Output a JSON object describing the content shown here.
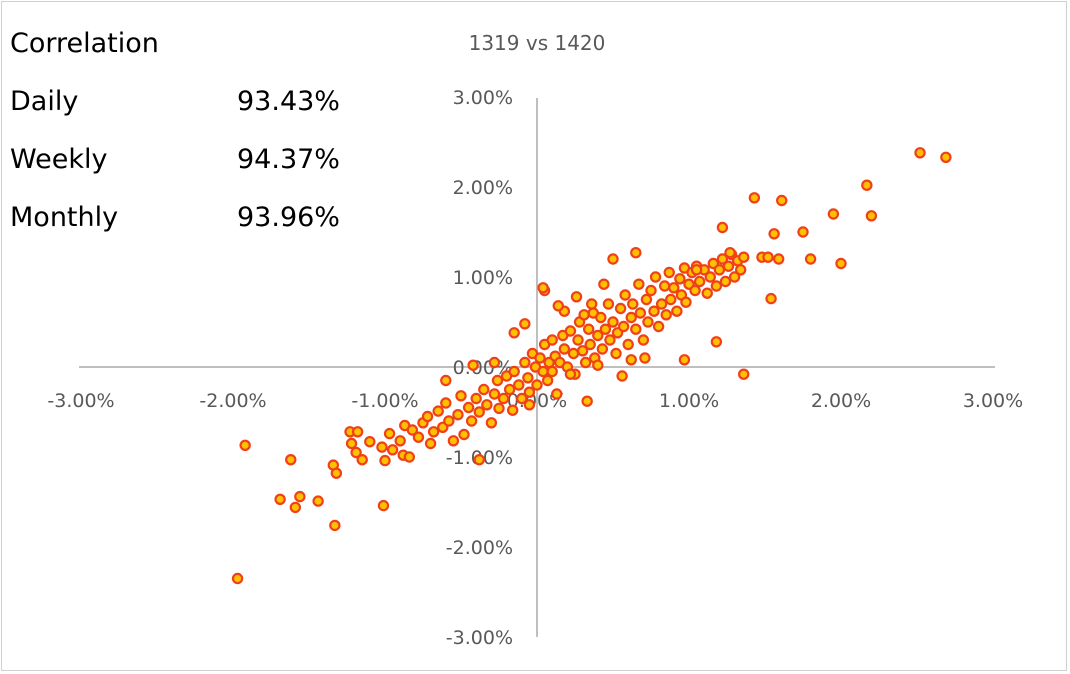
{
  "correlation": {
    "heading": "Correlation",
    "rows": [
      {
        "label": "Daily",
        "value": "93.43%"
      },
      {
        "label": "Weekly",
        "value": "94.37%"
      },
      {
        "label": "Monthly",
        "value": "93.96%"
      }
    ]
  },
  "chart_data": {
    "type": "scatter",
    "title": "1319 vs 1420",
    "xlabel": "",
    "ylabel": "",
    "xlim": [
      -3,
      3
    ],
    "ylim": [
      -3,
      3
    ],
    "x_tick_labels": [
      "-3.00%",
      "-2.00%",
      "-1.00%",
      "0.00%",
      "1.00%",
      "2.00%",
      "3.00%"
    ],
    "y_tick_labels": [
      "-3.00%",
      "-2.00%",
      "-1.00%",
      "0.00%",
      "1.00%",
      "2.00%",
      "3.00%"
    ],
    "grid": false,
    "marker_fill": "#ffc000",
    "marker_edge": "#f0401a",
    "series": [
      {
        "points": [
          [
            -1.97,
            -2.35
          ],
          [
            -1.92,
            -0.87
          ],
          [
            -1.69,
            -1.47
          ],
          [
            -1.62,
            -1.03
          ],
          [
            -1.59,
            -1.56
          ],
          [
            -1.56,
            -1.44
          ],
          [
            -1.44,
            -1.49
          ],
          [
            -1.33,
            -1.76
          ],
          [
            -1.34,
            -1.09
          ],
          [
            -1.32,
            -1.18
          ],
          [
            -1.23,
            -0.72
          ],
          [
            -1.22,
            -0.85
          ],
          [
            -1.18,
            -0.72
          ],
          [
            -1.19,
            -0.95
          ],
          [
            -1.15,
            -1.03
          ],
          [
            -1.1,
            -0.83
          ],
          [
            -1.02,
            -0.89
          ],
          [
            -1.0,
            -1.04
          ],
          [
            -1.01,
            -1.54
          ],
          [
            -0.97,
            -0.74
          ],
          [
            -0.95,
            -0.92
          ],
          [
            -0.9,
            -0.82
          ],
          [
            -0.88,
            -0.98
          ],
          [
            -0.87,
            -0.65
          ],
          [
            -0.84,
            -1.0
          ],
          [
            -0.82,
            -0.7
          ],
          [
            -0.78,
            -0.78
          ],
          [
            -0.75,
            -0.62
          ],
          [
            -0.72,
            -0.55
          ],
          [
            -0.7,
            -0.85
          ],
          [
            -0.68,
            -0.72
          ],
          [
            -0.65,
            -0.49
          ],
          [
            -0.62,
            -0.67
          ],
          [
            -0.6,
            -0.4
          ],
          [
            -0.58,
            -0.6
          ],
          [
            -0.55,
            -0.82
          ],
          [
            -0.52,
            -0.53
          ],
          [
            -0.5,
            -0.32
          ],
          [
            -0.48,
            -0.75
          ],
          [
            -0.45,
            -0.45
          ],
          [
            -0.43,
            -0.6
          ],
          [
            -0.4,
            -0.35
          ],
          [
            -0.38,
            -0.5
          ],
          [
            -0.35,
            -0.25
          ],
          [
            -0.38,
            -1.03
          ],
          [
            -0.33,
            -0.42
          ],
          [
            -0.3,
            -0.62
          ],
          [
            -0.28,
            -0.3
          ],
          [
            -0.26,
            -0.15
          ],
          [
            -0.25,
            -0.46
          ],
          [
            -0.22,
            -0.35
          ],
          [
            -0.2,
            -0.1
          ],
          [
            -0.18,
            -0.25
          ],
          [
            -0.16,
            -0.48
          ],
          [
            -0.15,
            -0.05
          ],
          [
            -0.12,
            -0.2
          ],
          [
            -0.1,
            -0.35
          ],
          [
            -0.08,
            0.05
          ],
          [
            -0.06,
            -0.12
          ],
          [
            -0.05,
            -0.28
          ],
          [
            -0.03,
            0.15
          ],
          [
            -0.01,
            0.0
          ],
          [
            0.0,
            -0.2
          ],
          [
            0.02,
            0.1
          ],
          [
            0.04,
            -0.05
          ],
          [
            0.05,
            0.25
          ],
          [
            0.07,
            -0.15
          ],
          [
            0.08,
            0.05
          ],
          [
            0.1,
            0.3
          ],
          [
            0.12,
            0.12
          ],
          [
            0.13,
            -0.3
          ],
          [
            0.15,
            0.05
          ],
          [
            0.17,
            0.35
          ],
          [
            0.18,
            0.2
          ],
          [
            0.2,
            0.0
          ],
          [
            0.22,
            0.4
          ],
          [
            0.24,
            0.15
          ],
          [
            0.25,
            -0.08
          ],
          [
            0.27,
            0.3
          ],
          [
            0.28,
            0.5
          ],
          [
            0.3,
            0.18
          ],
          [
            0.32,
            0.05
          ],
          [
            0.34,
            0.42
          ],
          [
            0.35,
            0.25
          ],
          [
            0.37,
            0.6
          ],
          [
            0.38,
            0.1
          ],
          [
            0.4,
            0.35
          ],
          [
            0.42,
            0.55
          ],
          [
            0.43,
            0.2
          ],
          [
            0.45,
            0.42
          ],
          [
            0.47,
            0.7
          ],
          [
            0.48,
            0.3
          ],
          [
            0.5,
            0.5
          ],
          [
            0.52,
            0.15
          ],
          [
            0.53,
            0.38
          ],
          [
            0.55,
            0.65
          ],
          [
            0.57,
            0.45
          ],
          [
            0.58,
            0.8
          ],
          [
            0.6,
            0.25
          ],
          [
            0.62,
            0.55
          ],
          [
            0.63,
            0.7
          ],
          [
            0.65,
            0.42
          ],
          [
            0.67,
            0.92
          ],
          [
            0.68,
            0.6
          ],
          [
            0.7,
            0.3
          ],
          [
            0.72,
            0.75
          ],
          [
            0.73,
            0.5
          ],
          [
            0.75,
            0.85
          ],
          [
            0.77,
            0.62
          ],
          [
            0.78,
            1.0
          ],
          [
            0.8,
            0.45
          ],
          [
            0.82,
            0.7
          ],
          [
            0.84,
            0.9
          ],
          [
            0.85,
            0.58
          ],
          [
            0.87,
            1.05
          ],
          [
            0.88,
            0.75
          ],
          [
            0.9,
            0.88
          ],
          [
            0.92,
            0.62
          ],
          [
            0.94,
            0.98
          ],
          [
            0.95,
            0.8
          ],
          [
            0.97,
            1.1
          ],
          [
            0.98,
            0.72
          ],
          [
            1.0,
            0.92
          ],
          [
            1.02,
            1.05
          ],
          [
            1.04,
            0.85
          ],
          [
            1.05,
            1.12
          ],
          [
            1.07,
            0.95
          ],
          [
            1.1,
            1.08
          ],
          [
            1.12,
            0.82
          ],
          [
            1.14,
            1.0
          ],
          [
            1.16,
            1.15
          ],
          [
            1.18,
            0.9
          ],
          [
            1.2,
            1.08
          ],
          [
            1.22,
            1.2
          ],
          [
            1.24,
            0.95
          ],
          [
            1.26,
            1.12
          ],
          [
            1.28,
            1.25
          ],
          [
            1.3,
            1.0
          ],
          [
            1.32,
            1.18
          ],
          [
            1.34,
            1.08
          ],
          [
            1.36,
            1.22
          ],
          [
            1.05,
            1.08
          ],
          [
            1.22,
            1.55
          ],
          [
            1.18,
            0.28
          ],
          [
            1.36,
            -0.08
          ],
          [
            1.27,
            1.27
          ],
          [
            0.97,
            0.08
          ],
          [
            0.65,
            1.27
          ],
          [
            0.5,
            1.2
          ],
          [
            0.1,
            -0.05
          ],
          [
            0.05,
            0.85
          ],
          [
            0.18,
            0.62
          ],
          [
            0.31,
            0.58
          ],
          [
            -0.08,
            0.48
          ],
          [
            -0.15,
            0.38
          ],
          [
            -0.28,
            0.05
          ],
          [
            -0.42,
            0.02
          ],
          [
            -0.6,
            -0.15
          ],
          [
            -0.05,
            -0.42
          ],
          [
            0.33,
            -0.38
          ],
          [
            0.22,
            -0.08
          ],
          [
            0.4,
            0.02
          ],
          [
            0.56,
            -0.1
          ],
          [
            0.62,
            0.08
          ],
          [
            0.71,
            0.1
          ],
          [
            0.44,
            0.92
          ],
          [
            0.36,
            0.7
          ],
          [
            0.26,
            0.78
          ],
          [
            0.14,
            0.68
          ],
          [
            0.04,
            0.88
          ],
          [
            1.43,
            1.88
          ],
          [
            1.48,
            1.22
          ],
          [
            1.52,
            1.22
          ],
          [
            1.54,
            0.76
          ],
          [
            1.56,
            1.48
          ],
          [
            1.59,
            1.2
          ],
          [
            1.61,
            1.85
          ],
          [
            1.75,
            1.5
          ],
          [
            1.8,
            1.2
          ],
          [
            1.95,
            1.7
          ],
          [
            2.0,
            1.15
          ],
          [
            2.17,
            2.02
          ],
          [
            2.2,
            1.68
          ],
          [
            2.52,
            2.38
          ],
          [
            2.69,
            2.33
          ]
        ]
      }
    ]
  }
}
